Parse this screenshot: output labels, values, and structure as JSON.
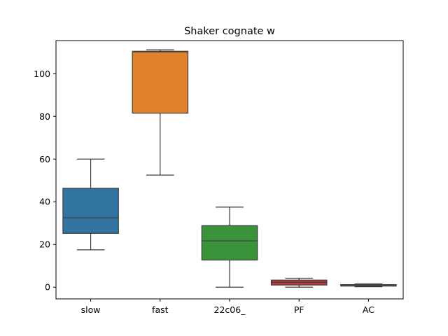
{
  "chart_data": {
    "type": "box",
    "title": "Shaker cognate w",
    "xlabel": "",
    "ylabel": "",
    "ylim": [
      -5.5,
      115.5
    ],
    "yticks": [
      0,
      20,
      40,
      60,
      80,
      100
    ],
    "grid": false,
    "legend": "none",
    "categories": [
      "slow",
      "fast",
      "22c06_",
      "PF",
      "AC"
    ],
    "boxes": [
      {
        "category": "slow",
        "whisker_low": 17.5,
        "q1": 25.2,
        "median": 32.5,
        "q3": 46.3,
        "whisker_high": 60.0,
        "color": "#3274a1"
      },
      {
        "category": "fast",
        "whisker_low": 52.5,
        "q1": 81.5,
        "median": 110.2,
        "q3": 110.5,
        "whisker_high": 111.2,
        "color": "#e1812c"
      },
      {
        "category": "22c06_",
        "whisker_low": 0.0,
        "q1": 12.7,
        "median": 21.7,
        "q3": 28.8,
        "whisker_high": 37.5,
        "color": "#3a923a"
      },
      {
        "category": "PF",
        "whisker_low": 0.0,
        "q1": 1.0,
        "median": 2.3,
        "q3": 3.3,
        "whisker_high": 4.2,
        "color": "#c03d3e"
      },
      {
        "category": "AC",
        "whisker_low": 0.2,
        "q1": 0.5,
        "median": 0.8,
        "q3": 1.2,
        "whisker_high": 1.5,
        "color": "#9372b2"
      }
    ],
    "line_color": "#3d3d3d"
  }
}
